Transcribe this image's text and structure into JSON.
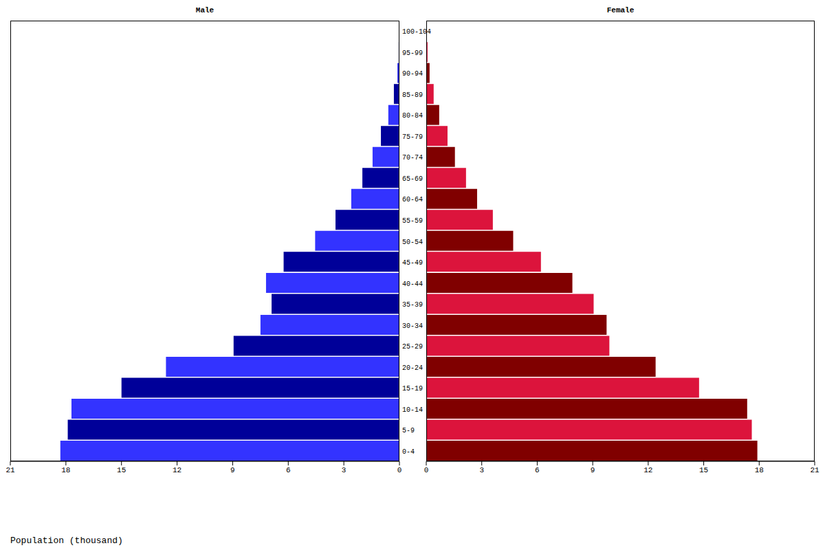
{
  "chart_data": [
    {
      "type": "bar",
      "orientation": "horizontal",
      "title": "Male",
      "xlabel": "Population (thousand)",
      "categories": [
        "0-4",
        "5-9",
        "10-14",
        "15-19",
        "20-24",
        "25-29",
        "30-34",
        "35-39",
        "40-44",
        "45-49",
        "50-54",
        "55-59",
        "60-64",
        "65-69",
        "70-74",
        "75-79",
        "80-84",
        "85-89",
        "90-94",
        "95-99",
        "100-104"
      ],
      "values": [
        18.3,
        17.9,
        17.7,
        15.0,
        12.6,
        8.95,
        7.5,
        6.9,
        7.2,
        6.25,
        4.55,
        3.45,
        2.6,
        2.0,
        1.45,
        1.0,
        0.6,
        0.3,
        0.11,
        0.04,
        0.01
      ],
      "colors": [
        "#3333ff",
        "#000099",
        "#3333ff",
        "#000099",
        "#3333ff",
        "#000099",
        "#3333ff",
        "#000099",
        "#3333ff",
        "#000099",
        "#3333ff",
        "#000099",
        "#3333ff",
        "#000099",
        "#3333ff",
        "#000099",
        "#3333ff",
        "#000099",
        "#3333ff",
        "#000099",
        "#3333ff"
      ],
      "xlim": [
        21,
        0
      ],
      "xticks": [
        21,
        18,
        15,
        12,
        9,
        6,
        3,
        0
      ]
    },
    {
      "type": "bar",
      "orientation": "horizontal",
      "title": "Female",
      "categories": [
        "0-4",
        "5-9",
        "10-14",
        "15-19",
        "20-24",
        "25-29",
        "30-34",
        "35-39",
        "40-44",
        "45-49",
        "50-54",
        "55-59",
        "60-64",
        "65-69",
        "70-74",
        "75-79",
        "80-84",
        "85-89",
        "90-94",
        "95-99",
        "100-104"
      ],
      "values": [
        17.9,
        17.6,
        17.35,
        14.75,
        12.4,
        9.9,
        9.75,
        9.05,
        7.9,
        6.2,
        4.7,
        3.6,
        2.75,
        2.15,
        1.55,
        1.15,
        0.7,
        0.4,
        0.18,
        0.07,
        0.03
      ],
      "colors": [
        "#800000",
        "#dc143c",
        "#800000",
        "#dc143c",
        "#800000",
        "#dc143c",
        "#800000",
        "#dc143c",
        "#800000",
        "#dc143c",
        "#800000",
        "#dc143c",
        "#800000",
        "#dc143c",
        "#800000",
        "#dc143c",
        "#800000",
        "#dc143c",
        "#800000",
        "#dc143c",
        "#800000"
      ],
      "xlim": [
        0,
        21
      ],
      "xticks": [
        0,
        3,
        6,
        9,
        12,
        15,
        18,
        21
      ]
    }
  ]
}
